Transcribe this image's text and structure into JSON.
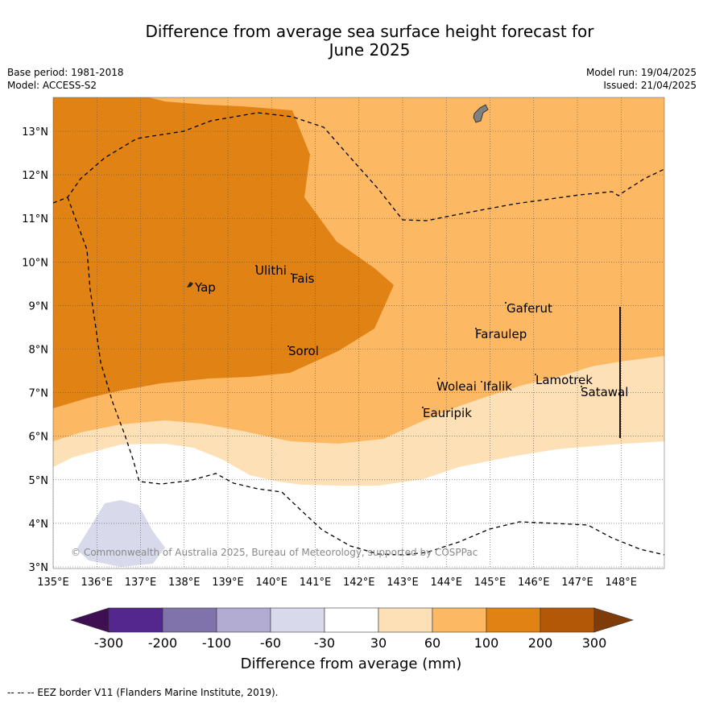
{
  "title_line1": "Difference from average sea surface height forecast for",
  "title_line2": "June 2025",
  "base_period": "Base period: 1981-2018",
  "model": "Model: ACCESS-S2",
  "model_run": "Model run: 19/04/2025",
  "issued": "Issued: 21/04/2025",
  "copyright": "© Commonwealth of Australia 2025, Bureau of Meteorology, supported by COSPPac",
  "footnote": "--  --  -- EEZ border V11 (Flanders Marine Institute, 2019).",
  "lon_labels": [
    "135°E",
    "136°E",
    "137°E",
    "138°E",
    "139°E",
    "140°E",
    "141°E",
    "142°E",
    "143°E",
    "144°E",
    "145°E",
    "146°E",
    "147°E",
    "148°E"
  ],
  "lat_labels": [
    "3°N",
    "4°N",
    "5°N",
    "6°N",
    "7°N",
    "8°N",
    "9°N",
    "10°N",
    "11°N",
    "12°N",
    "13°N"
  ],
  "places": {
    "yap": "Yap",
    "ulithi": "Ulithi",
    "fais": "Fais",
    "sorol": "Sorol",
    "gaferut": "Gaferut",
    "faraulep": "Faraulep",
    "woleai": "Woleai",
    "ifalik": "Ifalik",
    "lamotrek": "Lamotrek",
    "satawal": "Satawal",
    "eauripik": "Eauripik"
  },
  "colorbar": {
    "label": "Difference from average (mm)",
    "ticks": [
      "-300",
      "-200",
      "-100",
      "-60",
      "-30",
      "30",
      "60",
      "100",
      "200",
      "300"
    ],
    "colors": [
      "#3f0f54",
      "#54278f",
      "#8073ac",
      "#b2abd2",
      "#d8daeb",
      "#ffffff",
      "#fee0b6",
      "#fdb863",
      "#e08214",
      "#b35806",
      "#7f3b08"
    ]
  },
  "legend_colors": {
    "dark_orange": "#e08214",
    "mid_orange": "#fdb863",
    "light_orange": "#fee0b6",
    "light_purple": "#d8daeb",
    "land": "#808080"
  }
}
